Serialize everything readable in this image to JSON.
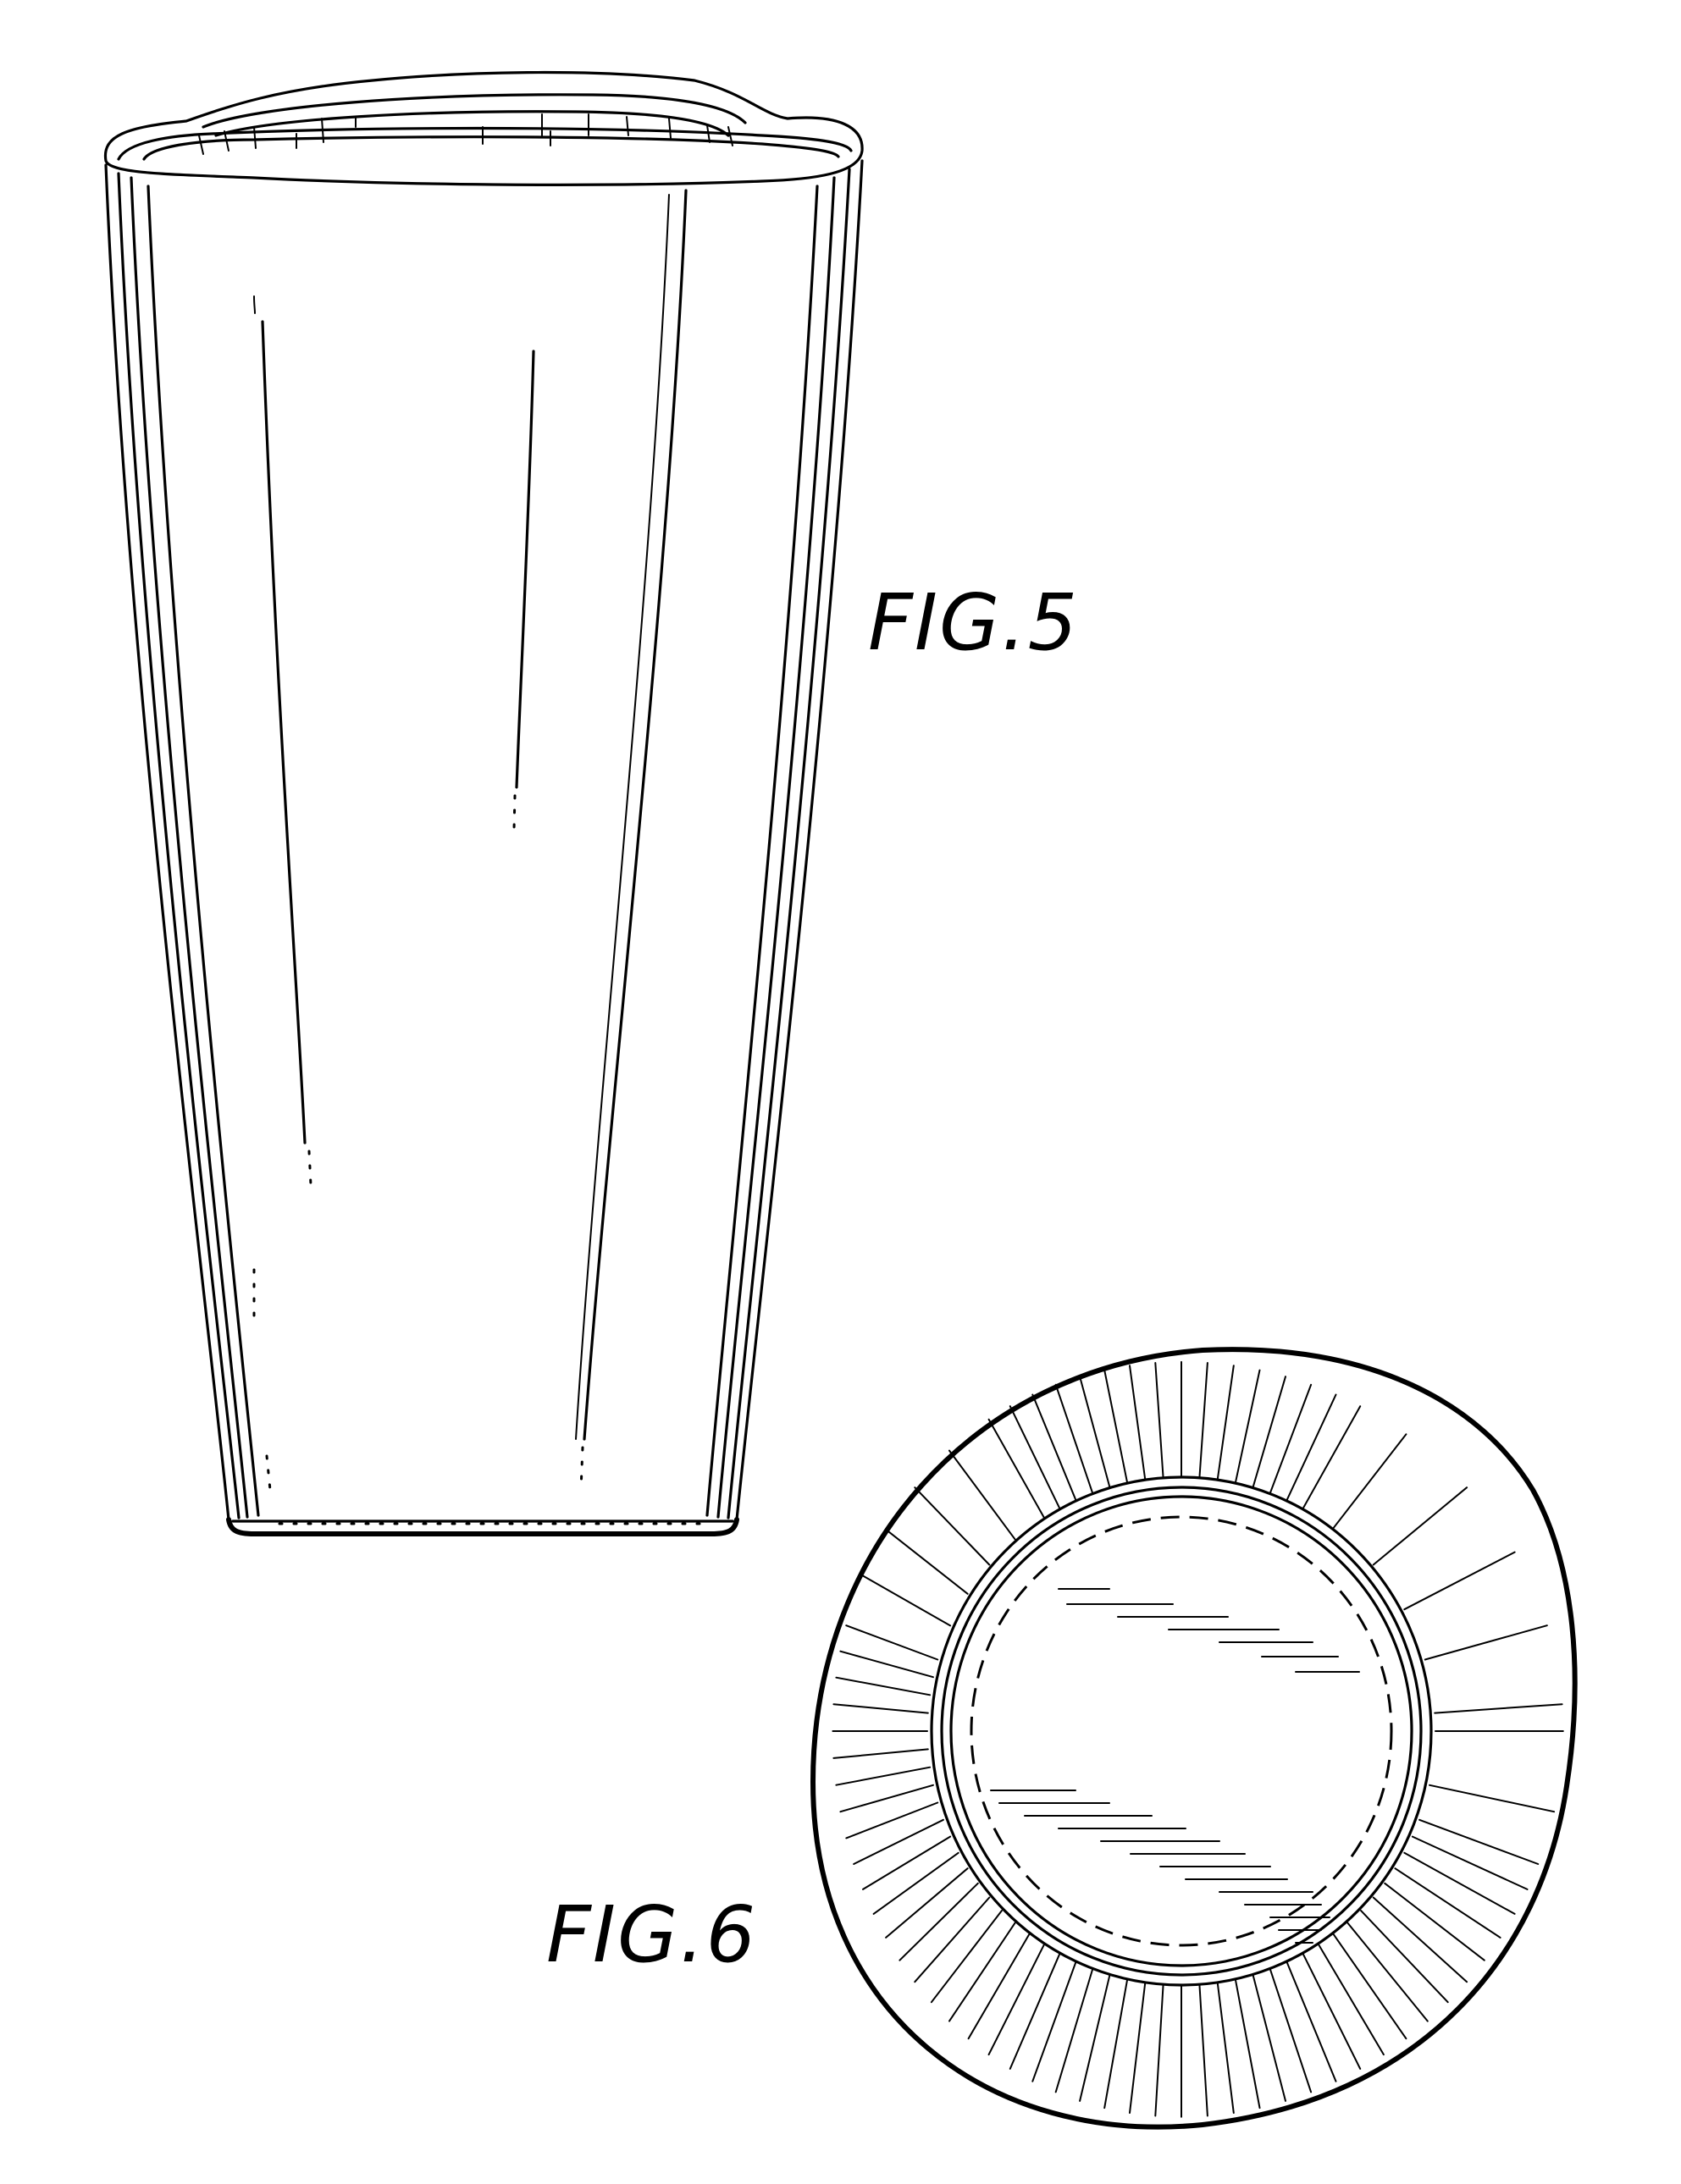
{
  "figures": [
    {
      "label": "FIG.5"
    },
    {
      "label": "FIG.6"
    }
  ]
}
